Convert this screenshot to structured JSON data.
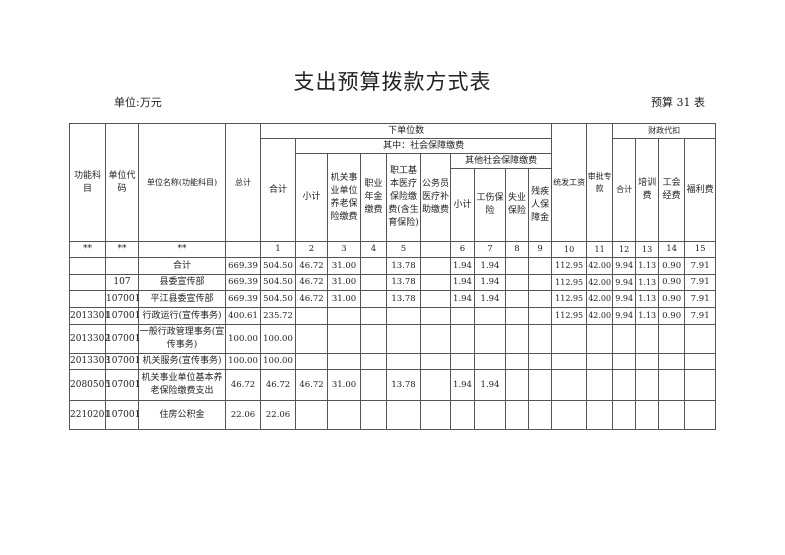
{
  "title": "支出预算拨款方式表",
  "unit": "单位:万元",
  "table_no": "预算 31 表",
  "headers": {
    "func_code": "功能科目",
    "unit_code": "单位代码",
    "unit_name": "单位名称(功能科目)",
    "total": "总计",
    "lower": "下单位数",
    "lower_total": "合计",
    "social": "其中：社会保障缴费",
    "social_sub": "小计",
    "pension": "机关事业单位养老保险缴费",
    "annuity": "职业年金缴费",
    "medical": "职工基本医疗保险缴费(含生育保险)",
    "civil_med": "公务员医疗补助缴费",
    "other": "其他社会保障缴费",
    "other_sub": "小计",
    "injury": "工伤保险",
    "unemploy": "失业保险",
    "disabled": "残疾人保障金",
    "salary": "统发工资",
    "special": "审批专款",
    "fiscal": "财政代扣",
    "fiscal_total": "合计",
    "training": "培训费",
    "union": "工会经费",
    "welfare": "福利费"
  },
  "index_row": [
    "**",
    "**",
    "**",
    "",
    "1",
    "2",
    "3",
    "4",
    "5",
    "",
    "6",
    "7",
    "8",
    "9",
    "10",
    "11",
    "12",
    "13",
    "14",
    "15"
  ],
  "rows": [
    [
      "",
      "",
      "合计",
      "669.39",
      "504.50",
      "46.72",
      "31.00",
      "",
      "13.78",
      "",
      "1.94",
      "1.94",
      "",
      "",
      "112.95",
      "42.00",
      "9.94",
      "1.13",
      "0.90",
      "7.91"
    ],
    [
      "",
      "107",
      "县委宣传部",
      "669.39",
      "504.50",
      "46.72",
      "31.00",
      "",
      "13.78",
      "",
      "1.94",
      "1.94",
      "",
      "",
      "112.95",
      "42.00",
      "9.94",
      "1.13",
      "0.90",
      "7.91"
    ],
    [
      "",
      "107001",
      "平江县委宣传部",
      "669.39",
      "504.50",
      "46.72",
      "31.00",
      "",
      "13.78",
      "",
      "1.94",
      "1.94",
      "",
      "",
      "112.95",
      "42.00",
      "9.94",
      "1.13",
      "0.90",
      "7.91"
    ],
    [
      "2013301",
      "107001",
      "行政运行(宣传事务)",
      "400.61",
      "235.72",
      "",
      "",
      "",
      "",
      "",
      "",
      "",
      "",
      "",
      "112.95",
      "42.00",
      "9.94",
      "1.13",
      "0.90",
      "7.91"
    ],
    [
      "2013302",
      "107001",
      "一般行政管理事务(宣传事务)",
      "100.00",
      "100.00",
      "",
      "",
      "",
      "",
      "",
      "",
      "",
      "",
      "",
      "",
      "",
      "",
      "",
      "",
      ""
    ],
    [
      "2013303",
      "107001",
      "机关服务(宣传事务)",
      "100.00",
      "100.00",
      "",
      "",
      "",
      "",
      "",
      "",
      "",
      "",
      "",
      "",
      "",
      "",
      "",
      "",
      ""
    ],
    [
      "2080505",
      "107001",
      "机关事业单位基本养老保险缴费支出",
      "46.72",
      "46.72",
      "46.72",
      "31.00",
      "",
      "13.78",
      "",
      "1.94",
      "1.94",
      "",
      "",
      "",
      "",
      "",
      "",
      "",
      ""
    ],
    [
      "2210201",
      "107001",
      "住房公积金",
      "22.06",
      "22.06",
      "",
      "",
      "",
      "",
      "",
      "",
      "",
      "",
      "",
      "",
      "",
      "",
      "",
      "",
      ""
    ]
  ]
}
